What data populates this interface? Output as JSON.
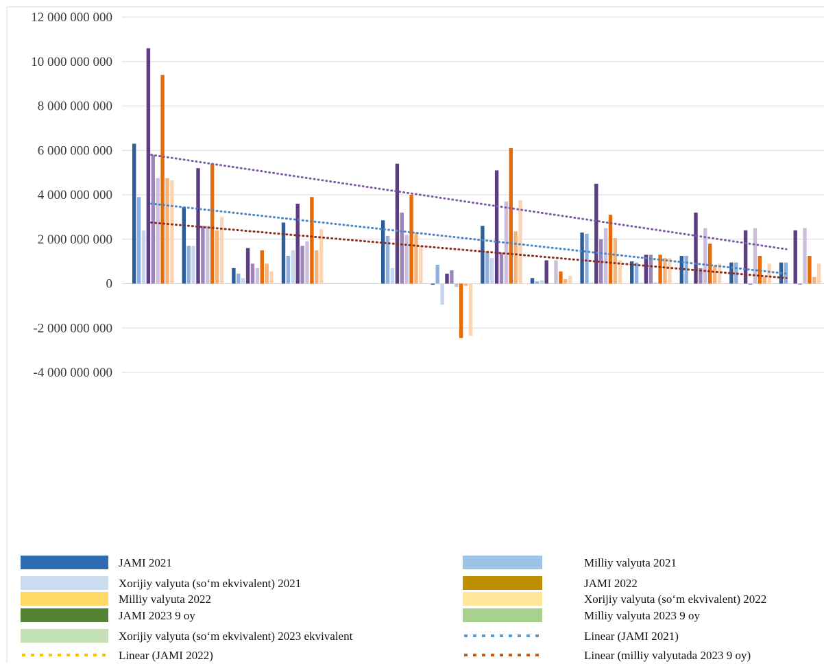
{
  "chart_data": {
    "type": "bar",
    "title": "",
    "xlabel": "",
    "ylabel": "",
    "ylim": [
      -4000000000,
      12000000000
    ],
    "yticks": [
      12000000000,
      10000000000,
      8000000000,
      6000000000,
      4000000000,
      2000000000,
      0,
      -2000000000,
      -4000000000
    ],
    "ytick_labels": [
      "12 000 000 000",
      "10 000 000 000",
      "8 000 000 000",
      "6 000 000 000",
      "4 000 000 000",
      "2 000 000 000",
      "0",
      "-2 000 000 000",
      "-4 000 000 000"
    ],
    "grid": true,
    "legend_position": "bottom",
    "series_colors": [
      "#2e5e9a",
      "#8fb0dd",
      "#c5d6ee",
      "#5c3d82",
      "#9b85bb",
      "#cbbfdc",
      "#e46c0a",
      "#f5b27a",
      "#fbd5b3"
    ],
    "groups": [
      [
        6300000000,
        3900000000,
        2400000000,
        10600000000,
        5800000000,
        4750000000,
        9400000000,
        4750000000,
        4650000000
      ],
      [
        3450000000,
        1700000000,
        1700000000,
        5200000000,
        2600000000,
        2600000000,
        5400000000,
        2400000000,
        3000000000
      ],
      [
        700000000,
        450000000,
        250000000,
        1600000000,
        900000000,
        700000000,
        1500000000,
        900000000,
        550000000
      ],
      [
        2750000000,
        1250000000,
        1500000000,
        3600000000,
        1700000000,
        1900000000,
        3900000000,
        1500000000,
        2450000000
      ],
      [
        0,
        0,
        0,
        0,
        0,
        0,
        0,
        0,
        0
      ],
      [
        2850000000,
        2150000000,
        700000000,
        5400000000,
        3200000000,
        2200000000,
        4000000000,
        2300000000,
        1700000000
      ],
      [
        -50000000,
        850000000,
        -950000000,
        450000000,
        600000000,
        -150000000,
        -2450000000,
        -100000000,
        -2350000000
      ],
      [
        2600000000,
        1450000000,
        1150000000,
        5100000000,
        1400000000,
        3700000000,
        6100000000,
        2350000000,
        3750000000
      ],
      [
        250000000,
        100000000,
        150000000,
        1050000000,
        0,
        1050000000,
        550000000,
        200000000,
        350000000
      ],
      [
        2300000000,
        2250000000,
        50000000,
        4500000000,
        2000000000,
        2500000000,
        3100000000,
        2050000000,
        1050000000
      ],
      [
        1000000000,
        950000000,
        50000000,
        1300000000,
        1300000000,
        50000000,
        1300000000,
        1150000000,
        1150000000
      ],
      [
        1250000000,
        1250000000,
        0,
        3200000000,
        700000000,
        2500000000,
        1800000000,
        800000000,
        900000000
      ],
      [
        950000000,
        950000000,
        0,
        2400000000,
        -50000000,
        2500000000,
        1250000000,
        300000000,
        900000000
      ],
      [
        950000000,
        950000000,
        0,
        2400000000,
        -50000000,
        2500000000,
        1250000000,
        300000000,
        900000000
      ]
    ],
    "trendlines": [
      {
        "start": 5800000000,
        "end": 1550000000,
        "color": "#7c5aa6"
      },
      {
        "start": 3600000000,
        "end": 450000000,
        "color": "#4a86c8"
      },
      {
        "start": 2750000000,
        "end": 250000000,
        "color": "#8b2e1d"
      }
    ]
  },
  "legend": [
    {
      "label": "JAMI 2021",
      "swatch": "solid",
      "color": "#2e6db4"
    },
    {
      "label": "Milliy valyuta 2021",
      "swatch": "solid",
      "color": "#9dc3e6"
    },
    {
      "label": "Xorijiy valyuta (so‘m ekvivalent) 2021",
      "swatch": "solid",
      "color": "#c9dcf0"
    },
    {
      "label": "JAMI 2022",
      "swatch": "solid",
      "color": "#bf8f00"
    },
    {
      "label": "Milliy valyuta 2022",
      "swatch": "solid",
      "color": "#ffd966"
    },
    {
      "label": "Xorijiy valyuta (so‘m ekvivalent) 2022",
      "swatch": "solid",
      "color": "#ffe699"
    },
    {
      "label": "JAMI 2023 9 oy",
      "swatch": "solid",
      "color": "#548235"
    },
    {
      "label": "Milliy valyuta 2023 9 oy",
      "swatch": "solid",
      "color": "#a9d18e"
    },
    {
      "label": "Xorijiy valyuta (so‘m ekvivalent) 2023 ekvivalent",
      "swatch": "solid",
      "color": "#c5e0b4"
    },
    {
      "label": "Linear (JAMI 2021)",
      "swatch": "dotted",
      "color": "#5b9bd5"
    },
    {
      "label": "Linear (JAMI 2022)",
      "swatch": "dotted",
      "color": "#ffc000"
    },
    {
      "label": "Linear (milliy valyutada 2023 9 oy)",
      "swatch": "dotted",
      "color": "#c55a11"
    }
  ]
}
